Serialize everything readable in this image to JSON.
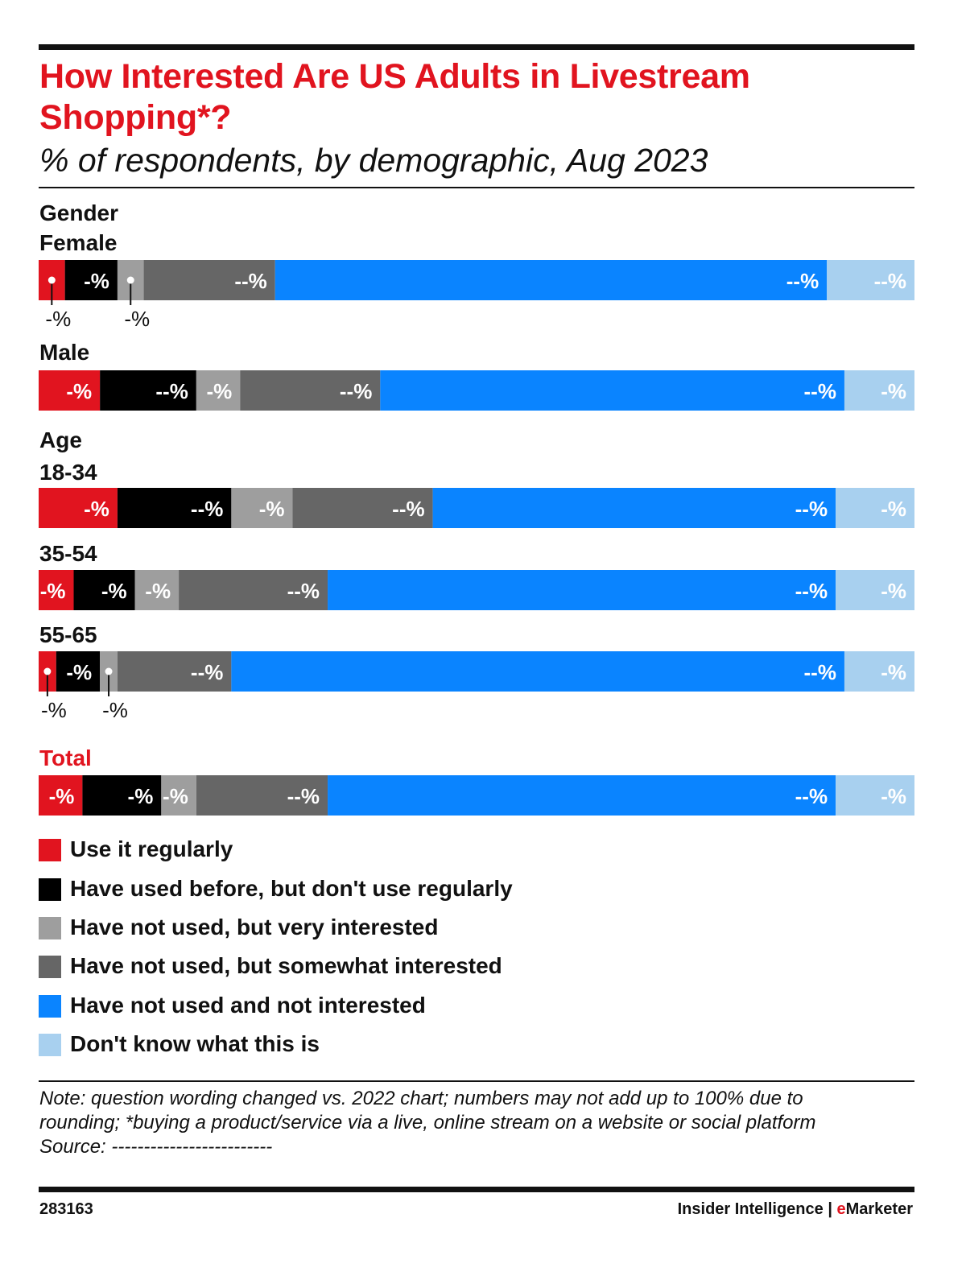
{
  "header": {
    "title_line1": "How Interested Are US Adults in Livestream",
    "title_line2": "Shopping*?",
    "subtitle": "% of respondents, by demographic, Aug 2023"
  },
  "sections": {
    "gender": "Gender",
    "age": "Age"
  },
  "chart_data": {
    "type": "bar",
    "orientation": "horizontal",
    "stacked": true,
    "normalized_to_100": true,
    "title": "How Interested Are US Adults in Livestream Shopping*?",
    "subtitle": "% of respondents, by demographic, Aug 2023",
    "xlim": [
      0,
      100
    ],
    "grid": false,
    "legend_position": "bottom",
    "categories": [
      "Female",
      "Male",
      "18-34",
      "35-54",
      "55-65",
      "Total"
    ],
    "series": [
      {
        "name": "Use it regularly",
        "color": "#e1141f",
        "values": [
          3,
          7,
          9,
          4,
          2,
          5
        ],
        "labels": [
          "-%",
          "-%",
          "-%",
          "-%",
          "-%",
          "-%"
        ]
      },
      {
        "name": "Have used before, but don't use regularly",
        "color": "#000000",
        "values": [
          6,
          11,
          13,
          7,
          5,
          9
        ],
        "labels": [
          "-%",
          "--%",
          "--%",
          "-%",
          "-%",
          "-%"
        ]
      },
      {
        "name": "Have not used, but very interested",
        "color": "#9e9e9e",
        "values": [
          3,
          5,
          7,
          5,
          2,
          4
        ],
        "labels": [
          "-%",
          "-%",
          "-%",
          "-%",
          "-%",
          "-%"
        ]
      },
      {
        "name": "Have not used, but somewhat interested",
        "color": "#666666",
        "values": [
          15,
          16,
          16,
          17,
          13,
          15
        ],
        "labels": [
          "--%",
          "--%",
          "--%",
          "--%",
          "--%",
          "--%"
        ]
      },
      {
        "name": "Have not used and not interested",
        "color": "#0a84ff",
        "values": [
          63,
          53,
          46,
          58,
          70,
          58
        ],
        "labels": [
          "--%",
          "--%",
          "--%",
          "--%",
          "--%",
          "--%"
        ]
      },
      {
        "name": "Don't know what this is",
        "color": "#a8d0ef",
        "values": [
          10,
          8,
          9,
          9,
          8,
          9
        ],
        "labels": [
          "--%",
          "-%",
          "-%",
          "-%",
          "-%",
          "-%"
        ]
      }
    ]
  },
  "note": {
    "line1": "Note: question wording changed vs. 2022 chart; numbers may not add up to 100% due to",
    "line2": "rounding; *buying a product/service via a live, online stream on a website or social platform",
    "line3": "Source: -------------------------"
  },
  "footer": {
    "id": "283163",
    "brand_main": "Insider Intelligence | ",
    "brand_accent": "e",
    "brand_tail": "Marketer"
  }
}
